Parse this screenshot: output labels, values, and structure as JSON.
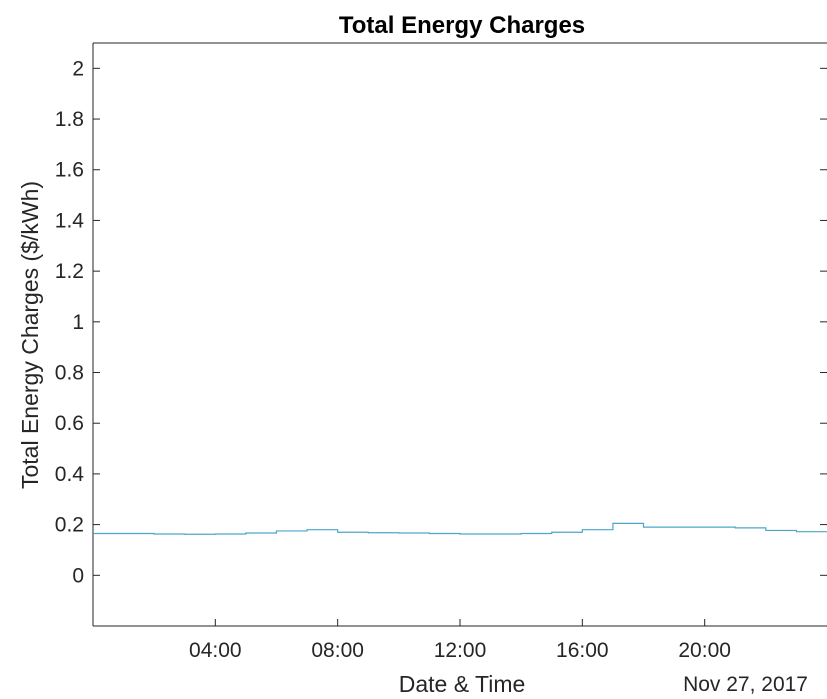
{
  "chart_data": {
    "type": "line",
    "title": "Total Energy Charges",
    "xlabel": "Date & Time",
    "ylabel": "Total Energy Charges ($/kWh)",
    "date_label": "Nov 27, 2017",
    "ylim": [
      -0.2,
      2.1
    ],
    "yticks": [
      "0",
      "0.2",
      "0.4",
      "0.6",
      "0.8",
      "1",
      "1.2",
      "1.4",
      "1.6",
      "1.8",
      "2"
    ],
    "xlim": [
      "00:00",
      "24:00"
    ],
    "xticks": [
      "04:00",
      "08:00",
      "12:00",
      "16:00",
      "20:00"
    ],
    "grid": false,
    "line_color": "#4DA6C8",
    "series": [
      {
        "x": [
          "00:00",
          "01:00",
          "02:00",
          "03:00",
          "04:00",
          "05:00",
          "06:00",
          "07:00",
          "08:00",
          "09:00",
          "10:00",
          "11:00",
          "12:00",
          "13:00",
          "14:00",
          "15:00",
          "16:00",
          "17:00",
          "18:00",
          "19:00",
          "20:00",
          "21:00",
          "22:00",
          "23:00",
          "24:00"
        ],
        "values": [
          0.165,
          0.165,
          0.163,
          0.162,
          0.163,
          0.167,
          0.175,
          0.18,
          0.17,
          0.168,
          0.167,
          0.165,
          0.163,
          0.163,
          0.165,
          0.17,
          0.18,
          0.205,
          0.19,
          0.19,
          0.19,
          0.187,
          0.177,
          0.172,
          0.172
        ]
      }
    ]
  }
}
